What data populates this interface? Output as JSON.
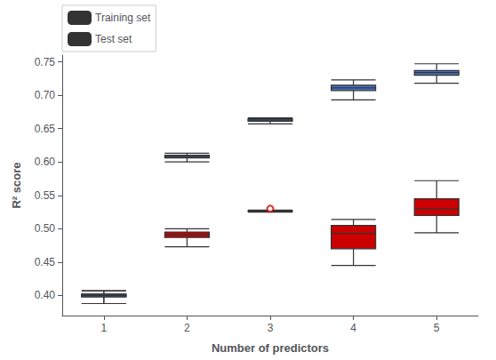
{
  "chart_data": {
    "type": "boxplot",
    "xlabel": "Number of predictors",
    "ylabel": "R² score",
    "x": [
      1,
      2,
      3,
      4,
      5
    ],
    "xlim": [
      0.5,
      5.5
    ],
    "xticks": [
      1,
      2,
      3,
      4,
      5
    ],
    "ylim": [
      0.37,
      0.76
    ],
    "yticks": [
      {
        "value": 0.4,
        "label": "0.40"
      },
      0.45,
      {
        "value": 0.5,
        "label": "0.50"
      },
      0.55,
      {
        "value": 0.6,
        "label": "0.60"
      },
      0.65,
      {
        "value": 0.7,
        "label": "0.70"
      },
      0.75
    ],
    "grid": false,
    "legend": "upper left",
    "series": [
      {
        "name": "Training set",
        "color": "#4472c4",
        "values": [
          [
            0.388,
            0.398,
            0.4,
            0.402,
            0.407
          ],
          [
            0.6,
            0.606,
            0.608,
            0.61,
            0.613
          ],
          [
            0.657,
            0.661,
            0.663,
            0.665,
            0.666
          ],
          [
            0.693,
            0.707,
            0.711,
            0.715,
            0.723
          ],
          [
            0.718,
            0.73,
            0.734,
            0.737,
            0.747
          ]
        ],
        "fliers": [
          [],
          [],
          [],
          [],
          []
        ]
      },
      {
        "name": "Test set",
        "color": "#cc0000",
        "values": [
          [
            0.388,
            0.398,
            0.4,
            0.402,
            0.407
          ],
          [
            0.473,
            0.487,
            0.491,
            0.495,
            0.5
          ],
          [
            0.525,
            0.526,
            0.527,
            0.527,
            0.528
          ],
          [
            0.445,
            0.47,
            0.493,
            0.505,
            0.514
          ],
          [
            0.494,
            0.52,
            0.53,
            0.545,
            0.572
          ]
        ],
        "fliers": [
          [],
          [],
          [
            0.53
          ],
          [],
          []
        ]
      }
    ]
  }
}
